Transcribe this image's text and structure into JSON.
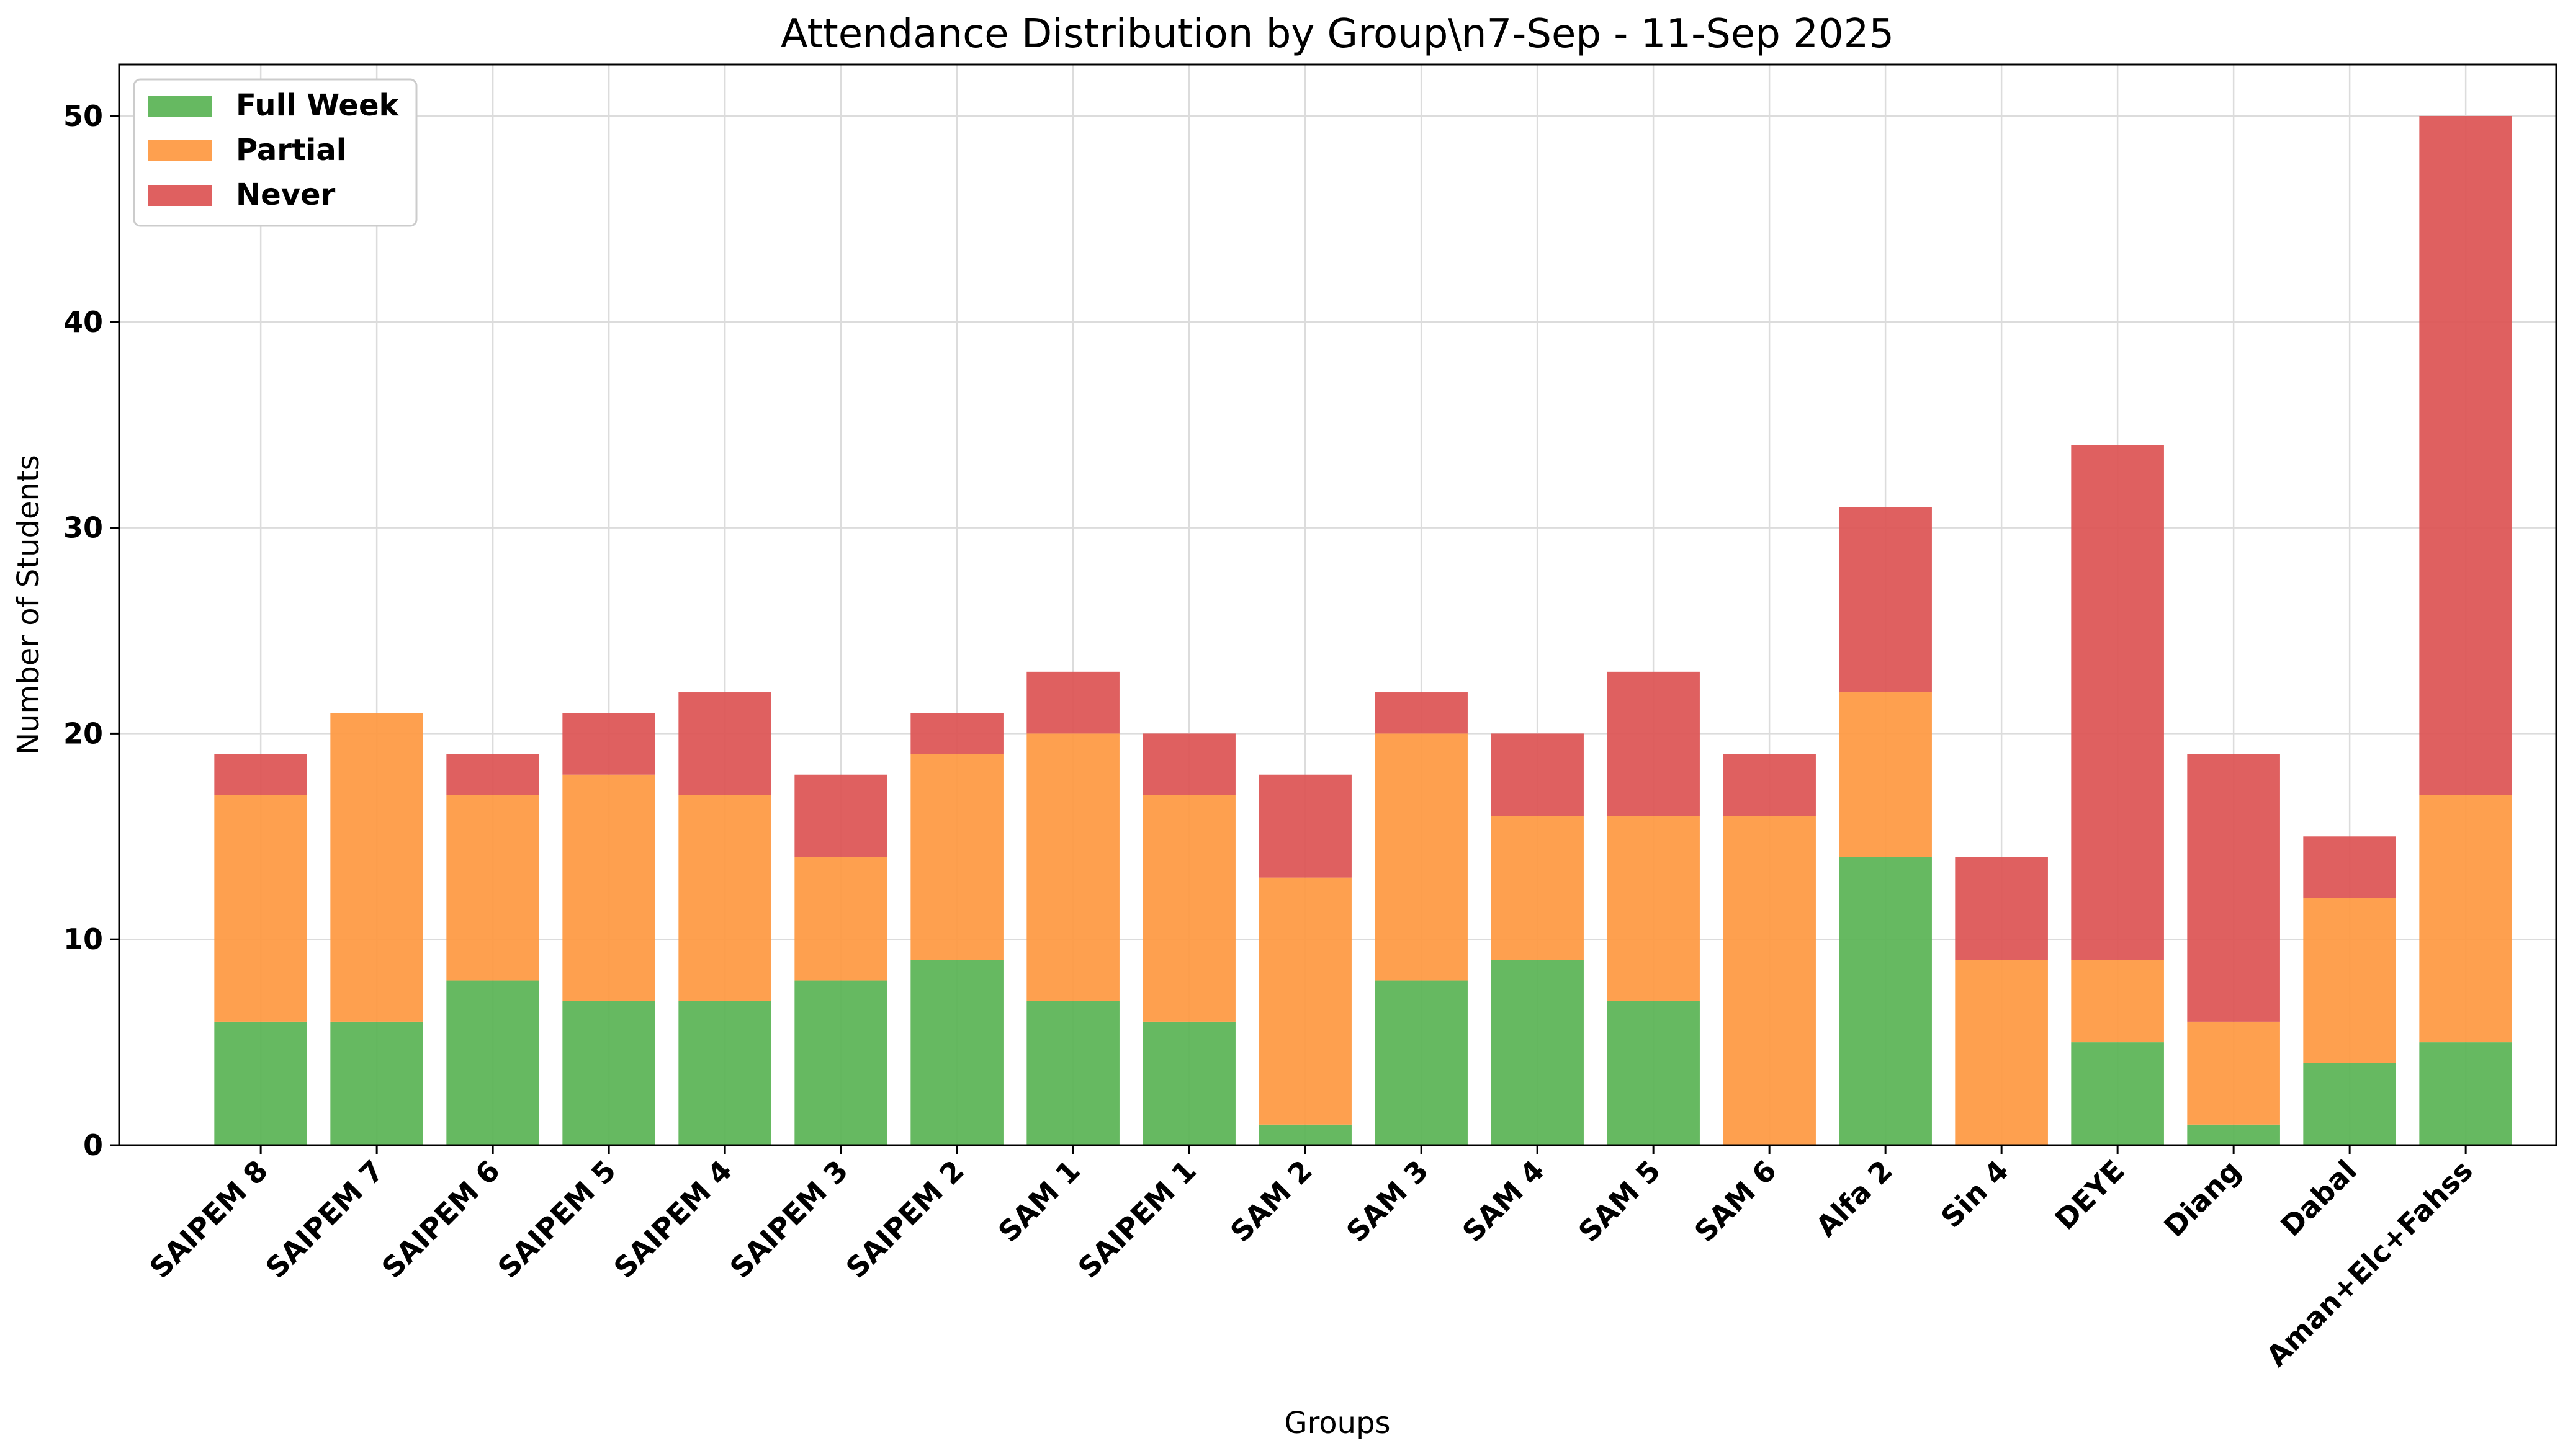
{
  "chart_data": {
    "type": "bar",
    "stacked": true,
    "title": "Attendance Distribution by Group\\n7-Sep - 11-Sep 2025",
    "xlabel": "Groups",
    "ylabel": "Number of Students",
    "ylim": [
      0,
      52.5
    ],
    "yticks": [
      0,
      10,
      20,
      30,
      40,
      50
    ],
    "grid": true,
    "legend_position": "top-left",
    "categories": [
      "SAIPEM 8",
      "SAIPEM 7",
      "SAIPEM 6",
      "SAIPEM 5",
      "SAIPEM 4",
      "SAIPEM 3",
      "SAIPEM 2",
      "SAM 1",
      "SAIPEM 1",
      "SAM 2",
      "SAM 3",
      "SAM 4",
      "SAM 5",
      "SAM 6",
      "Alfa 2",
      "Sin 4",
      "DEYE",
      "Diang",
      "Dabal",
      "Aman+Elc+Fahss"
    ],
    "series": [
      {
        "name": "Full Week",
        "color": "#59b354",
        "values": [
          6,
          6,
          8,
          7,
          7,
          8,
          9,
          7,
          6,
          1,
          8,
          9,
          7,
          0,
          14,
          0,
          5,
          1,
          4,
          5
        ]
      },
      {
        "name": "Partial",
        "color": "#fe9840",
        "values": [
          11,
          15,
          9,
          11,
          10,
          6,
          10,
          13,
          11,
          12,
          12,
          7,
          9,
          16,
          8,
          9,
          4,
          5,
          8,
          12
        ]
      },
      {
        "name": "Never",
        "color": "#dc5252",
        "values": [
          2,
          0,
          2,
          3,
          5,
          4,
          2,
          3,
          3,
          5,
          2,
          4,
          7,
          3,
          9,
          5,
          25,
          13,
          3,
          33
        ]
      }
    ]
  }
}
